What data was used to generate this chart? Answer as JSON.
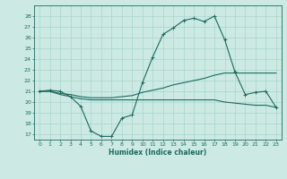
{
  "xlabel": "Humidex (Indice chaleur)",
  "xlim": [
    -0.5,
    23.5
  ],
  "ylim": [
    16.5,
    29
  ],
  "yticks": [
    17,
    18,
    19,
    20,
    21,
    22,
    23,
    24,
    25,
    26,
    27,
    28
  ],
  "xticks": [
    0,
    1,
    2,
    3,
    4,
    5,
    6,
    7,
    8,
    9,
    10,
    11,
    12,
    13,
    14,
    15,
    16,
    17,
    18,
    19,
    20,
    21,
    22,
    23
  ],
  "bg_color": "#cce9e4",
  "line_color": "#1a6b5e",
  "grid_color": "#a8d5ce",
  "line1_x": [
    0,
    1,
    2,
    3,
    4,
    5,
    6,
    7,
    8,
    9,
    10,
    11,
    12,
    13,
    14,
    15,
    16,
    17,
    18,
    19,
    20,
    21,
    22,
    23
  ],
  "line1_y": [
    21.0,
    21.1,
    21.0,
    20.5,
    19.6,
    17.3,
    16.8,
    16.8,
    18.5,
    18.8,
    21.8,
    24.2,
    26.3,
    26.9,
    27.6,
    27.8,
    27.5,
    28.0,
    25.8,
    22.8,
    20.7,
    20.9,
    21.0,
    19.5
  ],
  "line2_x": [
    0,
    1,
    2,
    3,
    4,
    5,
    6,
    7,
    8,
    9,
    10,
    11,
    12,
    13,
    14,
    15,
    16,
    17,
    18,
    19,
    20,
    21,
    22,
    23
  ],
  "line2_y": [
    21.0,
    21.0,
    20.8,
    20.7,
    20.5,
    20.4,
    20.4,
    20.4,
    20.5,
    20.6,
    20.9,
    21.1,
    21.3,
    21.6,
    21.8,
    22.0,
    22.2,
    22.5,
    22.7,
    22.7,
    22.7,
    22.7,
    22.7,
    22.7
  ],
  "line3_x": [
    0,
    1,
    2,
    3,
    4,
    5,
    6,
    7,
    8,
    9,
    10,
    11,
    12,
    13,
    14,
    15,
    16,
    17,
    18,
    19,
    20,
    21,
    22,
    23
  ],
  "line3_y": [
    21.0,
    21.0,
    20.7,
    20.5,
    20.3,
    20.2,
    20.2,
    20.2,
    20.2,
    20.2,
    20.2,
    20.2,
    20.2,
    20.2,
    20.2,
    20.2,
    20.2,
    20.2,
    20.0,
    19.9,
    19.8,
    19.7,
    19.7,
    19.5
  ]
}
